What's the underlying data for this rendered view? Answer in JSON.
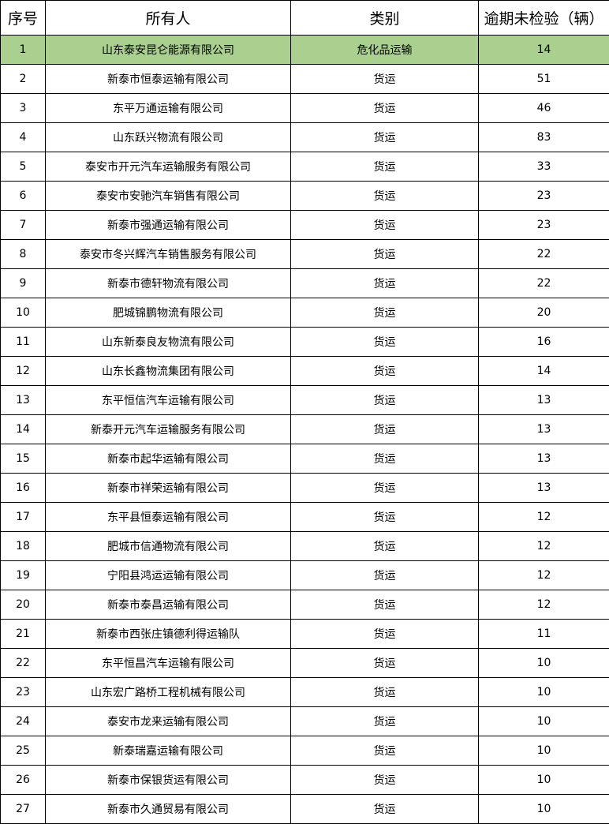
{
  "highlight_color": "#A9D08E",
  "headers": [
    "序号",
    "所有人",
    "类别",
    "逾期未检验（辆）"
  ],
  "rows": [
    [
      "1",
      "山东泰安昆仑能源有限公司",
      "危化品运输",
      "14"
    ],
    [
      "2",
      "新泰市恒泰运输有限公司",
      "货运",
      "51"
    ],
    [
      "3",
      "东平万通运输有限公司",
      "货运",
      "46"
    ],
    [
      "4",
      "山东跃兴物流有限公司",
      "货运",
      "83"
    ],
    [
      "5",
      "泰安市开元汽车运输服务有限公司",
      "货运",
      "33"
    ],
    [
      "6",
      "泰安市安驰汽车销售有限公司",
      "货运",
      "23"
    ],
    [
      "7",
      "新泰市强通运输有限公司",
      "货运",
      "23"
    ],
    [
      "8",
      "泰安市冬兴辉汽车销售服务有限公司",
      "货运",
      "22"
    ],
    [
      "9",
      "新泰市德轩物流有限公司",
      "货运",
      "22"
    ],
    [
      "10",
      "肥城锦鹏物流有限公司",
      "货运",
      "20"
    ],
    [
      "11",
      "山东新泰良友物流有限公司",
      "货运",
      "16"
    ],
    [
      "12",
      "山东长鑫物流集团有限公司",
      "货运",
      "14"
    ],
    [
      "13",
      "东平恒信汽车运输有限公司",
      "货运",
      "13"
    ],
    [
      "14",
      "新泰开元汽车运输服务有限公司",
      "货运",
      "13"
    ],
    [
      "15",
      "新泰市起华运输有限公司",
      "货运",
      "13"
    ],
    [
      "16",
      "新泰市祥荣运输有限公司",
      "货运",
      "13"
    ],
    [
      "17",
      "东平县恒泰运输有限公司",
      "货运",
      "12"
    ],
    [
      "18",
      "肥城市信通物流有限公司",
      "货运",
      "12"
    ],
    [
      "19",
      "宁阳县鸿运运输有限公司",
      "货运",
      "12"
    ],
    [
      "20",
      "新泰市泰昌运输有限公司",
      "货运",
      "12"
    ],
    [
      "21",
      "新泰市西张庄镇德利得运输队",
      "货运",
      "11"
    ],
    [
      "22",
      "东平恒昌汽车运输有限公司",
      "货运",
      "10"
    ],
    [
      "23",
      "山东宏广路桥工程机械有限公司",
      "货运",
      "10"
    ],
    [
      "24",
      "泰安市龙来运输有限公司",
      "货运",
      "10"
    ],
    [
      "25",
      "新泰瑞嘉运输有限公司",
      "货运",
      "10"
    ],
    [
      "26",
      "新泰市保银货运有限公司",
      "货运",
      "10"
    ],
    [
      "27",
      "新泰市久通贸易有限公司",
      "货运",
      "10"
    ]
  ]
}
